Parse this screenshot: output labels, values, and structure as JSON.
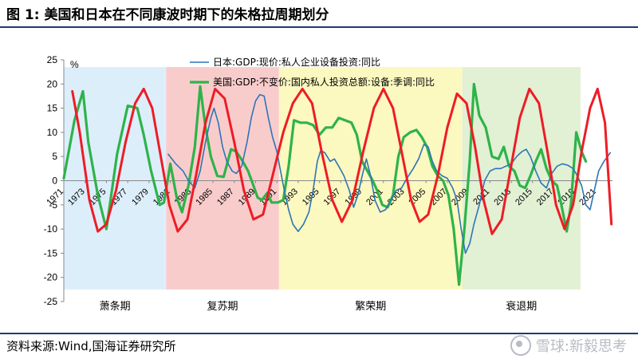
{
  "title": "图 1:  美国和日本在不同康波时期下的朱格拉周期划分",
  "source": "资料来源:Wind,国海证券研究所",
  "watermark": "雪球:新毅思考",
  "chart_data": {
    "type": "line",
    "yunit": "%",
    "ylim": [
      -25,
      25
    ],
    "yticks": [
      25,
      20,
      15,
      10,
      5,
      0,
      -5,
      -10,
      -15,
      -20,
      -25
    ],
    "xlim": [
      1971,
      2022.5
    ],
    "xticks": [
      1971,
      1973,
      1975,
      1977,
      1979,
      1981,
      1983,
      1985,
      1987,
      1989,
      1991,
      1993,
      1995,
      1997,
      1999,
      2001,
      2003,
      2005,
      2007,
      2009,
      2011,
      2013,
      2015,
      2017,
      2019,
      2021
    ],
    "phases": [
      {
        "label": "萧条期",
        "start": 1971,
        "end": 1980.6,
        "color": "#ddeefb"
      },
      {
        "label": "复苏期",
        "start": 1980.6,
        "end": 1991.2,
        "color": "#f9cccc"
      },
      {
        "label": "繁荣期",
        "start": 1991.2,
        "end": 2008.4,
        "color": "#fbf8c0"
      },
      {
        "label": "衰退期",
        "start": 2008.4,
        "end": 2019.5,
        "color": "#e2f0d4"
      }
    ],
    "series": [
      {
        "name": "日本:GDP:现价:私人企业设备投资:同比",
        "color": "#2e75b6",
        "width": 1.6,
        "points": [
          [
            1980.8,
            5.5
          ],
          [
            1981.5,
            3.5
          ],
          [
            1982.2,
            2
          ],
          [
            1982.7,
            0
          ],
          [
            1983.3,
            -1.5
          ],
          [
            1983.8,
            2
          ],
          [
            1984.3,
            8
          ],
          [
            1984.8,
            13
          ],
          [
            1985.1,
            15
          ],
          [
            1985.5,
            12
          ],
          [
            1985.9,
            7
          ],
          [
            1986.3,
            4
          ],
          [
            1986.8,
            2
          ],
          [
            1987.2,
            1.5
          ],
          [
            1987.7,
            3
          ],
          [
            1988.2,
            8
          ],
          [
            1988.6,
            13
          ],
          [
            1989,
            16.5
          ],
          [
            1989.4,
            17.8
          ],
          [
            1989.8,
            17.5
          ],
          [
            1990.2,
            13
          ],
          [
            1990.6,
            9
          ],
          [
            1991,
            6
          ],
          [
            1991.3,
            2.5
          ],
          [
            1991.7,
            -2
          ],
          [
            1992.1,
            -6
          ],
          [
            1992.5,
            -9
          ],
          [
            1993,
            -10.5
          ],
          [
            1993.5,
            -9
          ],
          [
            1994,
            -6.5
          ],
          [
            1994.4,
            -2
          ],
          [
            1994.8,
            4
          ],
          [
            1995.1,
            6.2
          ],
          [
            1995.5,
            5.8
          ],
          [
            1996,
            4
          ],
          [
            1996.4,
            4.5
          ],
          [
            1996.8,
            3
          ],
          [
            1997.3,
            1
          ],
          [
            1997.8,
            -2
          ],
          [
            1998.2,
            -5.5
          ],
          [
            1998.6,
            -3
          ],
          [
            1999,
            1
          ],
          [
            1999.4,
            4.5
          ],
          [
            1999.8,
            1
          ],
          [
            2000.2,
            -4
          ],
          [
            2000.7,
            -6.5
          ],
          [
            2001.2,
            -6
          ],
          [
            2001.7,
            -4
          ],
          [
            2002.2,
            -2
          ],
          [
            2002.7,
            -1.5
          ],
          [
            2003.2,
            0.5
          ],
          [
            2003.8,
            2.5
          ],
          [
            2004.3,
            4.5
          ],
          [
            2004.8,
            7.5
          ],
          [
            2005.2,
            7
          ],
          [
            2005.6,
            4
          ],
          [
            2006,
            2
          ],
          [
            2006.5,
            1
          ],
          [
            2007,
            0.5
          ],
          [
            2007.5,
            -1.5
          ],
          [
            2007.9,
            -4
          ],
          [
            2008.3,
            -10
          ],
          [
            2008.7,
            -15
          ],
          [
            2009.1,
            -13
          ],
          [
            2009.5,
            -9
          ],
          [
            2010,
            -5
          ],
          [
            2010.5,
            0
          ],
          [
            2011,
            2
          ],
          [
            2011.5,
            2.5
          ],
          [
            2012,
            2.5
          ],
          [
            2012.5,
            3
          ],
          [
            2013,
            3.5
          ],
          [
            2013.5,
            5
          ],
          [
            2014,
            6
          ],
          [
            2014.4,
            6.5
          ],
          [
            2014.8,
            5
          ],
          [
            2015.3,
            2
          ],
          [
            2015.8,
            -0.5
          ],
          [
            2016.3,
            -1.5
          ],
          [
            2016.8,
            1.5
          ],
          [
            2017.3,
            3
          ],
          [
            2017.8,
            3.5
          ],
          [
            2018.3,
            3.2
          ],
          [
            2018.8,
            2.5
          ],
          [
            2019.2,
            1
          ],
          [
            2019.6,
            -1
          ],
          [
            2020,
            -5
          ],
          [
            2020.4,
            -6
          ],
          [
            2020.8,
            -2
          ],
          [
            2021.2,
            2
          ],
          [
            2021.7,
            4
          ],
          [
            2022.3,
            5.8
          ]
        ]
      },
      {
        "name": "美国:GDP:不变价:国内私人投资总额:设备:季调:同比",
        "color": "#2eb34a",
        "width": 3.2,
        "points": [
          [
            1971,
            0.5
          ],
          [
            1972,
            12.5
          ],
          [
            1972.8,
            18.5
          ],
          [
            1973.3,
            8
          ],
          [
            1974.2,
            -3
          ],
          [
            1975,
            -10
          ],
          [
            1976,
            5.5
          ],
          [
            1977,
            15.5
          ],
          [
            1977.9,
            15
          ],
          [
            1978.5,
            9.5
          ],
          [
            1979.2,
            2
          ],
          [
            1980,
            -5
          ],
          [
            1980.4,
            -4.5
          ],
          [
            1981,
            3.5
          ],
          [
            1981.6,
            -3.5
          ],
          [
            1982.1,
            -6.5
          ],
          [
            1982.7,
            -1
          ],
          [
            1983.3,
            7
          ],
          [
            1983.8,
            19.5
          ],
          [
            1984.3,
            11
          ],
          [
            1984.8,
            5
          ],
          [
            1985.4,
            1
          ],
          [
            1986,
            0.8
          ],
          [
            1986.7,
            6.5
          ],
          [
            1987.2,
            6
          ],
          [
            1987.8,
            4
          ],
          [
            1988.3,
            2
          ],
          [
            1988.8,
            -1
          ],
          [
            1989.2,
            -3.5
          ],
          [
            1989.6,
            -4
          ],
          [
            1990.1,
            -2.5
          ],
          [
            1990.5,
            -4.5
          ],
          [
            1991.1,
            -4.5
          ],
          [
            1991.6,
            -4
          ],
          [
            1992.1,
            3
          ],
          [
            1992.6,
            12.5
          ],
          [
            1993.2,
            12
          ],
          [
            1993.8,
            12
          ],
          [
            1994.4,
            11.5
          ],
          [
            1995,
            9.5
          ],
          [
            1995.6,
            11
          ],
          [
            1996.2,
            11
          ],
          [
            1996.8,
            13
          ],
          [
            1997.4,
            12.5
          ],
          [
            1998,
            12
          ],
          [
            1998.5,
            9.5
          ],
          [
            1999,
            4
          ],
          [
            1999.5,
            2
          ],
          [
            2000,
            0
          ],
          [
            2000.4,
            -2
          ],
          [
            2000.9,
            -5
          ],
          [
            2001.4,
            -5.5
          ],
          [
            2001.9,
            -3
          ],
          [
            2002.4,
            5
          ],
          [
            2002.9,
            9
          ],
          [
            2003.5,
            10
          ],
          [
            2004.1,
            10.5
          ],
          [
            2004.6,
            9
          ],
          [
            2005.1,
            7
          ],
          [
            2005.6,
            3
          ],
          [
            2006.1,
            1
          ],
          [
            2006.6,
            0
          ],
          [
            2007.1,
            -3
          ],
          [
            2007.6,
            -10
          ],
          [
            2008.1,
            -21.5
          ],
          [
            2008.6,
            -10
          ],
          [
            2009.1,
            4
          ],
          [
            2009.5,
            20
          ],
          [
            2010,
            13.5
          ],
          [
            2010.6,
            11
          ],
          [
            2011.2,
            5
          ],
          [
            2011.8,
            4.5
          ],
          [
            2012.3,
            7
          ],
          [
            2012.8,
            3
          ],
          [
            2013.3,
            2
          ],
          [
            2013.8,
            -1
          ],
          [
            2014.3,
            -1.5
          ],
          [
            2014.8,
            1
          ],
          [
            2015.3,
            4
          ],
          [
            2015.8,
            6.5
          ],
          [
            2016.3,
            2.5
          ],
          [
            2016.8,
            0
          ],
          [
            2017.3,
            -1
          ],
          [
            2017.7,
            -5
          ],
          [
            2018.2,
            -10.5
          ],
          [
            2018.6,
            -5
          ],
          [
            2019.1,
            10
          ],
          [
            2019.6,
            6
          ],
          [
            2020,
            4
          ]
        ]
      },
      {
        "name": "",
        "color": "#ee1c25",
        "width": 3,
        "points": [
          [
            1971.8,
            18.5
          ],
          [
            1972.5,
            10
          ],
          [
            1973.4,
            -4
          ],
          [
            1974.2,
            -10.5
          ],
          [
            1975,
            -9
          ],
          [
            1975.9,
            -2
          ],
          [
            1976.8,
            8
          ],
          [
            1977.7,
            16
          ],
          [
            1978.5,
            19
          ],
          [
            1979.3,
            15
          ],
          [
            1980.1,
            5
          ],
          [
            1980.9,
            -5
          ],
          [
            1981.7,
            -10.5
          ],
          [
            1982.6,
            -8
          ],
          [
            1983.4,
            1
          ],
          [
            1984.3,
            12
          ],
          [
            1985.2,
            19
          ],
          [
            1986.1,
            17
          ],
          [
            1987,
            8
          ],
          [
            1987.9,
            -2
          ],
          [
            1988.8,
            -8
          ],
          [
            1989.7,
            -7
          ],
          [
            1990.6,
            1
          ],
          [
            1991.6,
            10
          ],
          [
            1992.5,
            16
          ],
          [
            1993.4,
            19
          ],
          [
            1994.3,
            16
          ],
          [
            1995.2,
            6
          ],
          [
            1996.2,
            -4
          ],
          [
            1997.1,
            -8.5
          ],
          [
            1998.1,
            -4
          ],
          [
            1999.1,
            6
          ],
          [
            2000.1,
            15
          ],
          [
            2001,
            19
          ],
          [
            2001.9,
            15
          ],
          [
            2002.8,
            5
          ],
          [
            2003.6,
            -4
          ],
          [
            2004.4,
            -8.5
          ],
          [
            2005.2,
            -7
          ],
          [
            2006.1,
            1
          ],
          [
            2007,
            11
          ],
          [
            2007.9,
            18
          ],
          [
            2008.8,
            16
          ],
          [
            2009.6,
            7
          ],
          [
            2010.4,
            -4
          ],
          [
            2011.2,
            -11
          ],
          [
            2012.1,
            -8
          ],
          [
            2012.9,
            2
          ],
          [
            2013.8,
            13
          ],
          [
            2014.7,
            19
          ],
          [
            2015.6,
            16
          ],
          [
            2016.4,
            6
          ],
          [
            2017.2,
            -5
          ],
          [
            2018,
            -10
          ],
          [
            2018.8,
            -5
          ],
          [
            2019.6,
            6
          ],
          [
            2020.4,
            15
          ],
          [
            2021.1,
            19
          ],
          [
            2021.8,
            12
          ],
          [
            2022.4,
            -9
          ]
        ]
      }
    ]
  }
}
